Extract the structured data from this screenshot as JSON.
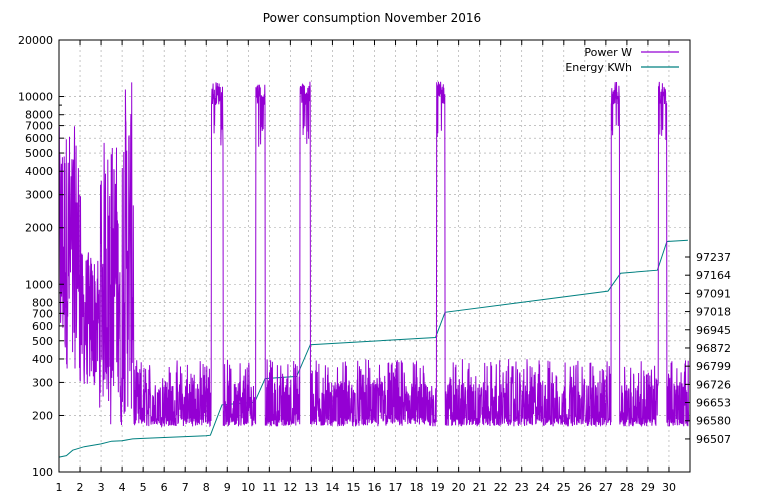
{
  "chart_data": {
    "type": "line",
    "title": "Power consumption November 2016",
    "xlabel": "",
    "ylabel": "",
    "y2label": "",
    "grid": true,
    "legend_position": "top-right",
    "x_ticks": [
      "1",
      "2",
      "3",
      "4",
      "5",
      "6",
      "7",
      "8",
      "9",
      "10",
      "11",
      "12",
      "13",
      "14",
      "15",
      "16",
      "17",
      "18",
      "19",
      "20",
      "21",
      "22",
      "23",
      "24",
      "25",
      "26",
      "27",
      "28",
      "29",
      "30"
    ],
    "xlim": [
      1,
      31
    ],
    "ylim": [
      100,
      20000
    ],
    "y_scale": "log",
    "y_ticks": [
      100,
      200,
      300,
      400,
      500,
      600,
      700,
      800,
      1000,
      2000,
      3000,
      4000,
      5000,
      6000,
      7000,
      8000,
      10000,
      20000
    ],
    "y_tick_labels": [
      "100",
      "200",
      "300",
      "400",
      "500",
      "600",
      "700",
      "800",
      "1000",
      "2000",
      "3000",
      "4000",
      "5000",
      "6000",
      "7000",
      "8000",
      "10000",
      "20000"
    ],
    "y2_ticks": [
      96507,
      96580,
      96653,
      96726,
      96799,
      96872,
      96945,
      97018,
      97091,
      97164,
      97237
    ],
    "y2_scale": "log-aligned",
    "series": [
      {
        "name": "Power W",
        "axis": "left",
        "color": "#9400d3",
        "base_level": 230,
        "low_level": 175,
        "bursts": [
          {
            "x0": 1.0,
            "x1": 2.05,
            "lo": 350,
            "hi": 7000
          },
          {
            "x0": 2.05,
            "x1": 2.95,
            "lo": 280,
            "hi": 1500
          },
          {
            "x0": 2.95,
            "x1": 3.9,
            "lo": 260,
            "hi": 6000
          },
          {
            "x0": 4.0,
            "x1": 4.55,
            "lo": 200,
            "hi": 12000
          },
          {
            "x0": 8.25,
            "x1": 8.8,
            "lo": 9000,
            "hi": 12000
          },
          {
            "x0": 10.35,
            "x1": 10.8,
            "lo": 9000,
            "hi": 12000
          },
          {
            "x0": 12.45,
            "x1": 12.95,
            "lo": 9000,
            "hi": 12000
          },
          {
            "x0": 18.95,
            "x1": 19.35,
            "lo": 9000,
            "hi": 12000
          },
          {
            "x0": 27.25,
            "x1": 27.65,
            "lo": 9000,
            "hi": 12000
          },
          {
            "x0": 29.5,
            "x1": 29.9,
            "lo": 9000,
            "hi": 12000
          }
        ]
      },
      {
        "name": "Energy KWh",
        "axis": "right",
        "color": "#008080",
        "points": [
          [
            1.0,
            96434
          ],
          [
            1.35,
            96440
          ],
          [
            1.65,
            96462
          ],
          [
            2.2,
            96476
          ],
          [
            3.0,
            96487
          ],
          [
            3.5,
            96498
          ],
          [
            4.0,
            96500
          ],
          [
            4.5,
            96507
          ],
          [
            5.0,
            96509
          ],
          [
            8.0,
            96520
          ],
          [
            8.2,
            96522
          ],
          [
            8.75,
            96644
          ],
          [
            10.3,
            96654
          ],
          [
            10.8,
            96749
          ],
          [
            12.3,
            96758
          ],
          [
            12.95,
            96885
          ],
          [
            18.9,
            96914
          ],
          [
            19.35,
            97015
          ],
          [
            27.1,
            97100
          ],
          [
            27.7,
            97172
          ],
          [
            29.45,
            97184
          ],
          [
            29.9,
            97299
          ],
          [
            30.9,
            97304
          ]
        ]
      }
    ]
  }
}
